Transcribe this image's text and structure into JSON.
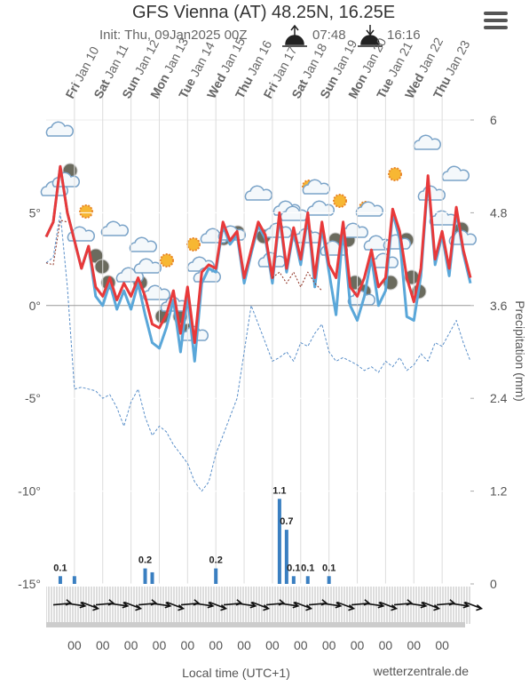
{
  "chart_data": {
    "type": "line",
    "title": "GFS Vienna (AT) 48.25N, 16.25E",
    "subtitle": "Init: Thu, 09Jan2025 00Z",
    "sunrise": "07:48",
    "sunset": "16:16",
    "days": [
      {
        "day": "Fri",
        "date": "Jan 10"
      },
      {
        "day": "Sat",
        "date": "Jan 11"
      },
      {
        "day": "Sun",
        "date": "Jan 12"
      },
      {
        "day": "Mon",
        "date": "Jan 13"
      },
      {
        "day": "Tue",
        "date": "Jan 14"
      },
      {
        "day": "Wed",
        "date": "Jan 15"
      },
      {
        "day": "Thu",
        "date": "Jan 16"
      },
      {
        "day": "Fri",
        "date": "Jan 17"
      },
      {
        "day": "Sat",
        "date": "Jan 18"
      },
      {
        "day": "Sun",
        "date": "Jan 19"
      },
      {
        "day": "Mon",
        "date": "Jan 20"
      },
      {
        "day": "Tue",
        "date": "Jan 21"
      },
      {
        "day": "Wed",
        "date": "Jan 22"
      },
      {
        "day": "Thu",
        "date": "Jan 23"
      }
    ],
    "hour_labels": [
      "00",
      "00",
      "00",
      "00",
      "00",
      "00",
      "00",
      "00",
      "00",
      "00",
      "00",
      "00",
      "00",
      "00"
    ],
    "xlabel": "Local time (UTC+1)",
    "y2label": "Precipitation (mm)",
    "credit": "wetterzentrale.de",
    "ylim": [
      -15,
      10
    ],
    "yticks": [
      {
        "value": 5,
        "label": "5°"
      },
      {
        "value": 0,
        "label": "0°"
      },
      {
        "value": -5,
        "label": "-5°"
      },
      {
        "value": -10,
        "label": "-10°"
      },
      {
        "value": -15,
        "label": "-15°"
      }
    ],
    "y2lim": [
      0,
      6
    ],
    "y2ticks": [
      6,
      4.8,
      3.6,
      2.4,
      1.2,
      0
    ],
    "series": [
      {
        "color": "#5aa7d9",
        "style": "solid",
        "values": [
          3.7,
          4.5,
          7.5,
          5,
          3.5,
          2,
          3.2,
          0.5,
          0,
          1.2,
          -0.2,
          0.8,
          -0.2,
          1.2,
          -0.5,
          -2,
          -2.3,
          -1.2,
          0.3,
          -2.5,
          0.5,
          -3,
          1.2,
          2,
          1.8,
          4.3,
          3.3,
          3.8,
          1.2,
          2.8,
          4.3,
          3.6,
          1.2,
          4.8,
          1.8,
          4,
          2.2,
          4.8,
          1,
          4.2,
          1.8,
          -0.5,
          4.2,
          0,
          -0.8,
          0.5,
          2.6,
          0,
          0.8,
          5,
          3.6,
          -0.6,
          -0.8,
          1.6,
          6.8,
          2.2,
          3.8,
          1.6,
          5.1,
          2.8,
          1.2
        ]
      },
      {
        "color": "#e8393a",
        "style": "solid",
        "values": [
          3.7,
          4.5,
          7.5,
          5,
          3.5,
          2,
          3.2,
          1,
          0.5,
          1.5,
          0.3,
          1.2,
          0.5,
          1.5,
          0.5,
          -1,
          -1.2,
          -0.5,
          0.8,
          -1.5,
          1,
          -2,
          1.8,
          2.2,
          2,
          4.5,
          3.5,
          4,
          1.5,
          3,
          4.5,
          3.8,
          1.5,
          5,
          2,
          4.2,
          2.5,
          5,
          1.5,
          4.5,
          2.2,
          1.5,
          4.5,
          1,
          0.5,
          1.5,
          3,
          1,
          1.5,
          5.2,
          4,
          1.5,
          0.2,
          2,
          7,
          2.5,
          4,
          2,
          5.3,
          3,
          1.5
        ]
      },
      {
        "color": "#5a8fc9",
        "style": "dashed",
        "values": [
          2.3,
          2.6,
          5,
          1,
          -4.5,
          -4.4,
          -4.5,
          -4.6,
          -5,
          -4.8,
          -5.5,
          -6.5,
          -5.2,
          -4.5,
          -6,
          -7,
          -6.5,
          -6.8,
          -7.5,
          -8,
          -8.5,
          -9.5,
          -10,
          -9.5,
          -8,
          -7,
          -6,
          -5,
          -2.5,
          0,
          -1,
          -2,
          -3,
          -2.8,
          -2.5,
          -3,
          -2,
          -2.2,
          -1.5,
          -1,
          -2.5,
          -3,
          -2.8,
          -3,
          -3.2,
          -3.5,
          -3.3,
          -3.6,
          -3,
          -3.3,
          -2.8,
          -3.5,
          -3.2,
          -2.6,
          -3,
          -2,
          -2.2,
          -1.5,
          -0.8,
          -2,
          -3
        ]
      },
      {
        "color": "#8b2a1a",
        "style": "dotted",
        "values": [
          2.3,
          2.2,
          4.6,
          4.5,
          null,
          null,
          null,
          null,
          null,
          null,
          null,
          null,
          null,
          null,
          null,
          null,
          null,
          null,
          null,
          null,
          null,
          null,
          null,
          null,
          null,
          null,
          null,
          null,
          null,
          null,
          null,
          null,
          1.5,
          1.8,
          1.2,
          1.8,
          1,
          1.8,
          1.2,
          0.8,
          null,
          null,
          null,
          null,
          null,
          null,
          null,
          null,
          null,
          null,
          null,
          null,
          null,
          null,
          null,
          null,
          null,
          null,
          null,
          null,
          null
        ]
      },
      {
        "color": "#3a7fc1",
        "style": "bar",
        "axis": "y2",
        "values": [
          0,
          0,
          0.1,
          0,
          0.1,
          0,
          0,
          0,
          0,
          0,
          0,
          0,
          0,
          0,
          0.2,
          0.15,
          0,
          0,
          0,
          0,
          0,
          0,
          0,
          0,
          0.2,
          0,
          0,
          0,
          0,
          0,
          0,
          0,
          0,
          1.1,
          0.7,
          0.1,
          0,
          0.1,
          0,
          0,
          0.1,
          0,
          0,
          0,
          0,
          0,
          0,
          0,
          0,
          0,
          0,
          0,
          0,
          0,
          0,
          0,
          0,
          0,
          0,
          0,
          0
        ],
        "value_labels": [
          null,
          null,
          "0.1",
          null,
          null,
          null,
          null,
          null,
          null,
          null,
          null,
          null,
          null,
          null,
          "0.2",
          null,
          null,
          null,
          null,
          null,
          null,
          null,
          null,
          null,
          "0.2",
          null,
          null,
          null,
          null,
          null,
          null,
          null,
          null,
          "1.1",
          "0.7",
          "0.1",
          null,
          "0.1",
          null,
          null,
          "0.1",
          null,
          null,
          null,
          null,
          null,
          null,
          null,
          null,
          null,
          null,
          null,
          null,
          null,
          null,
          null,
          null,
          null,
          null,
          null,
          null
        ]
      }
    ]
  }
}
